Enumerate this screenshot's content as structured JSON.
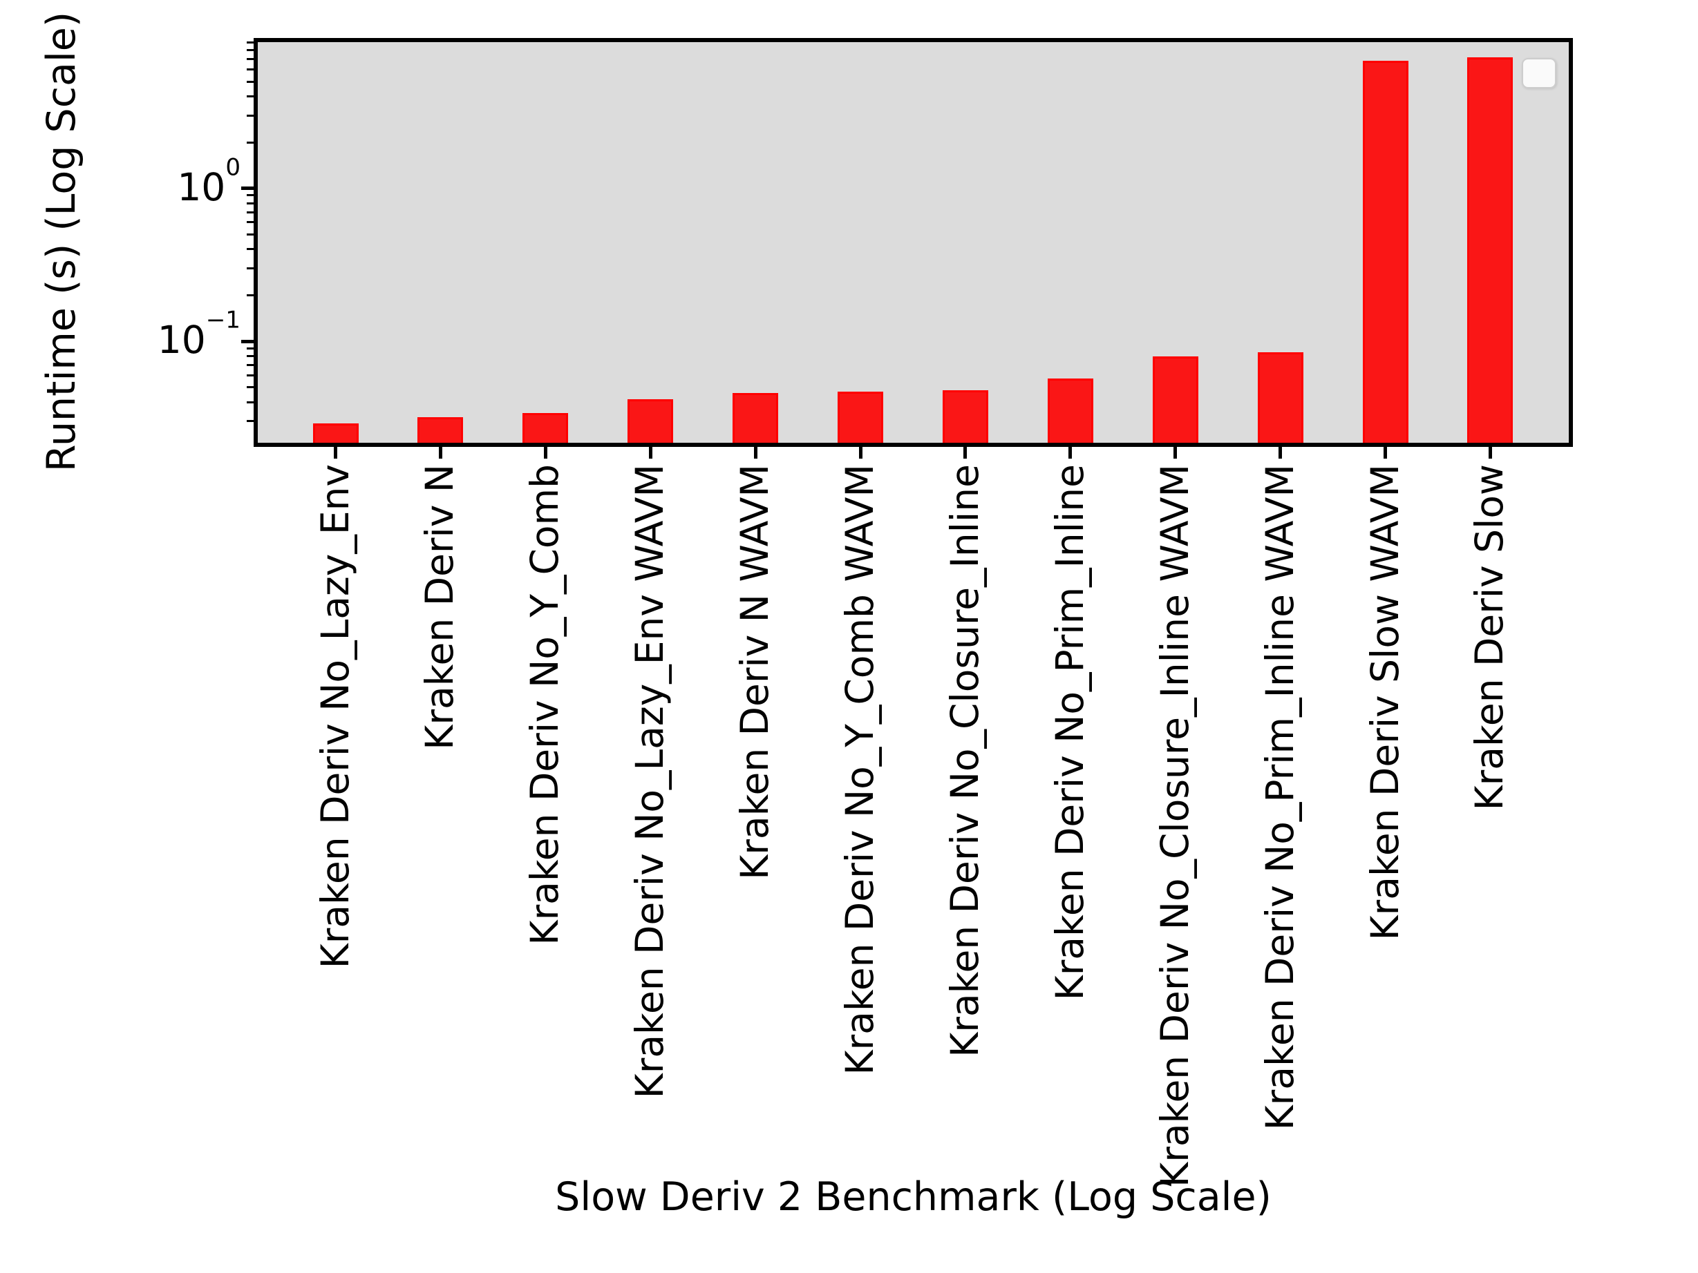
{
  "chart_data": {
    "type": "bar",
    "title": "",
    "xlabel": "Slow Deriv 2 Benchmark (Log Scale)",
    "ylabel": "Runtime (s) (Log Scale)",
    "categories": [
      "Kraken Deriv No_Lazy_Env",
      "Kraken Deriv N",
      "Kraken Deriv No_Y_Comb",
      "Kraken Deriv No_Lazy_Env WAVM",
      "Kraken Deriv N WAVM",
      "Kraken Deriv No_Y_Comb WAVM",
      "Kraken Deriv No_Closure_Inline",
      "Kraken Deriv No_Prim_Inline",
      "Kraken Deriv No_Closure_Inline WAVM",
      "Kraken Deriv No_Prim_Inline WAVM",
      "Kraken Deriv Slow WAVM",
      "Kraken Deriv Slow"
    ],
    "values": [
      0.029,
      0.032,
      0.034,
      0.042,
      0.046,
      0.047,
      0.048,
      0.057,
      0.08,
      0.085,
      6.8,
      7.2
    ],
    "value_unit": "s",
    "yscale": "log",
    "ylim": [
      0.0217,
      9.05
    ],
    "yticks": [
      {
        "value": 1,
        "base": "10",
        "exp": "0"
      },
      {
        "value": 0.1,
        "base": "10",
        "exp": "−1"
      }
    ],
    "minor_tick_multiples": [
      2,
      3,
      4,
      5,
      6,
      7,
      8,
      9
    ],
    "minor_tick_decades": [
      0.01,
      0.1,
      1
    ],
    "grid": false,
    "legend": {
      "visible": true,
      "position": "upper right",
      "entries": []
    },
    "colors": {
      "bar_face": "#fa1616",
      "bar_edge": "#ff0000",
      "plot_background": "#dcdcdc",
      "figure_background": "#ffffff",
      "axis": "#000000"
    }
  }
}
